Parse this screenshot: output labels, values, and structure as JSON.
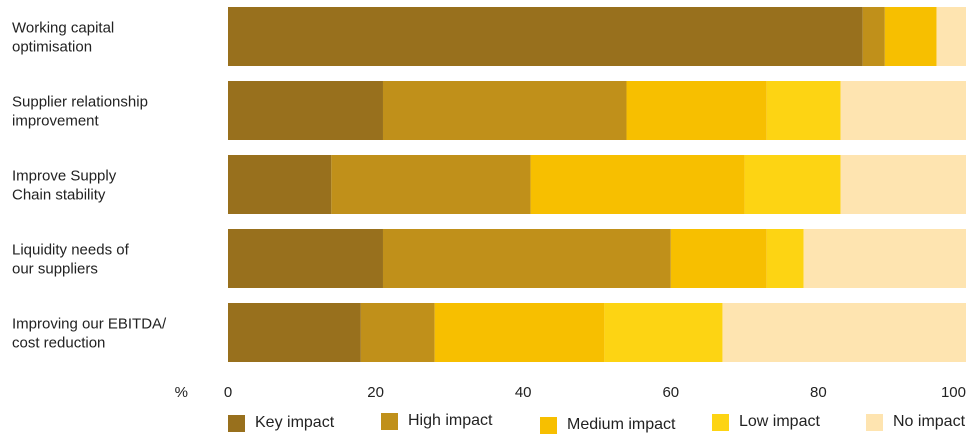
{
  "chart_data": {
    "type": "bar",
    "orientation": "horizontal",
    "stacked": true,
    "categories": [
      [
        "Working capital",
        "optimisation"
      ],
      [
        "Supplier relationship",
        "improvement"
      ],
      [
        "Improve Supply",
        "Chain stability"
      ],
      [
        "Liquidity needs of",
        "our suppliers"
      ],
      [
        "Improving our EBITDA/",
        "cost reduction"
      ]
    ],
    "series": [
      {
        "name": "Key impact",
        "color": "#98701d",
        "values": [
          86,
          21,
          14,
          21,
          18
        ]
      },
      {
        "name": "High impact",
        "color": "#c0901a",
        "values": [
          3,
          33,
          27,
          39,
          10
        ]
      },
      {
        "name": "Medium impact",
        "color": "#f7bf00",
        "values": [
          7,
          19,
          29,
          13,
          23
        ]
      },
      {
        "name": "Low impact",
        "color": "#fdd413",
        "values": [
          0,
          10,
          13,
          5,
          16
        ]
      },
      {
        "name": "No impact",
        "color": "#fee4b0",
        "values": [
          4,
          17,
          17,
          22,
          33
        ]
      }
    ],
    "xlabel": "%",
    "xlim": [
      0,
      100
    ],
    "xticks": [
      0,
      20,
      40,
      60,
      80,
      100
    ],
    "grid": false,
    "legend_position": "bottom"
  }
}
